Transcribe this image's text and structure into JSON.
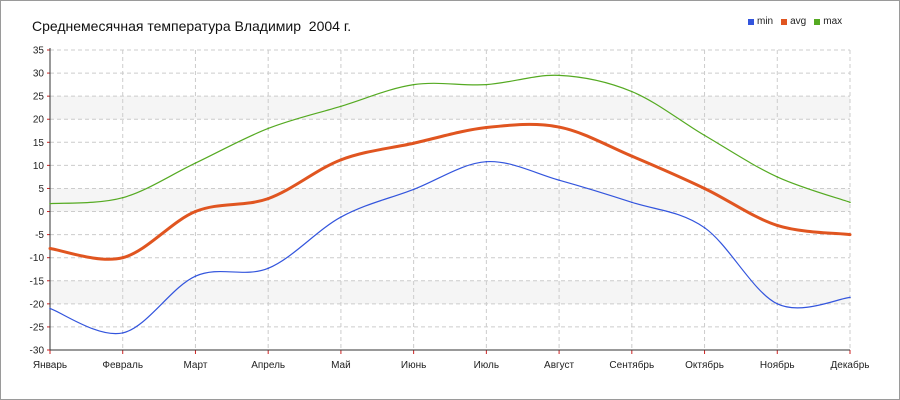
{
  "chart_data": {
    "type": "line",
    "title": "Среднемесячная температура Владимир  2004 г.",
    "categories": [
      "Январь",
      "Февраль",
      "Март",
      "Апрель",
      "Май",
      "Июнь",
      "Июль",
      "Август",
      "Сентябрь",
      "Октябрь",
      "Ноябрь",
      "Декабрь"
    ],
    "ylim": [
      -30,
      35
    ],
    "yticks": [
      35,
      30,
      25,
      20,
      15,
      10,
      5,
      0,
      -5,
      -10,
      -15,
      -20,
      -25,
      -30
    ],
    "grid": true,
    "legend_position": "top-right",
    "series": [
      {
        "name": "min",
        "color": "#3355dd",
        "values": [
          -21,
          -26.3,
          -14,
          -12.3,
          -1.2,
          4.8,
          10.8,
          6.8,
          2,
          -3.5,
          -20,
          -18.6
        ]
      },
      {
        "name": "avg",
        "color": "#e05520",
        "values": [
          -8,
          -10,
          0,
          2.8,
          11.2,
          14.8,
          18.2,
          18.3,
          12,
          5,
          -3,
          -5
        ]
      },
      {
        "name": "max",
        "color": "#55aa22",
        "values": [
          1.7,
          3,
          10.5,
          18,
          22.8,
          27.5,
          27.5,
          29.5,
          26,
          16.5,
          7.5,
          2
        ]
      }
    ]
  }
}
